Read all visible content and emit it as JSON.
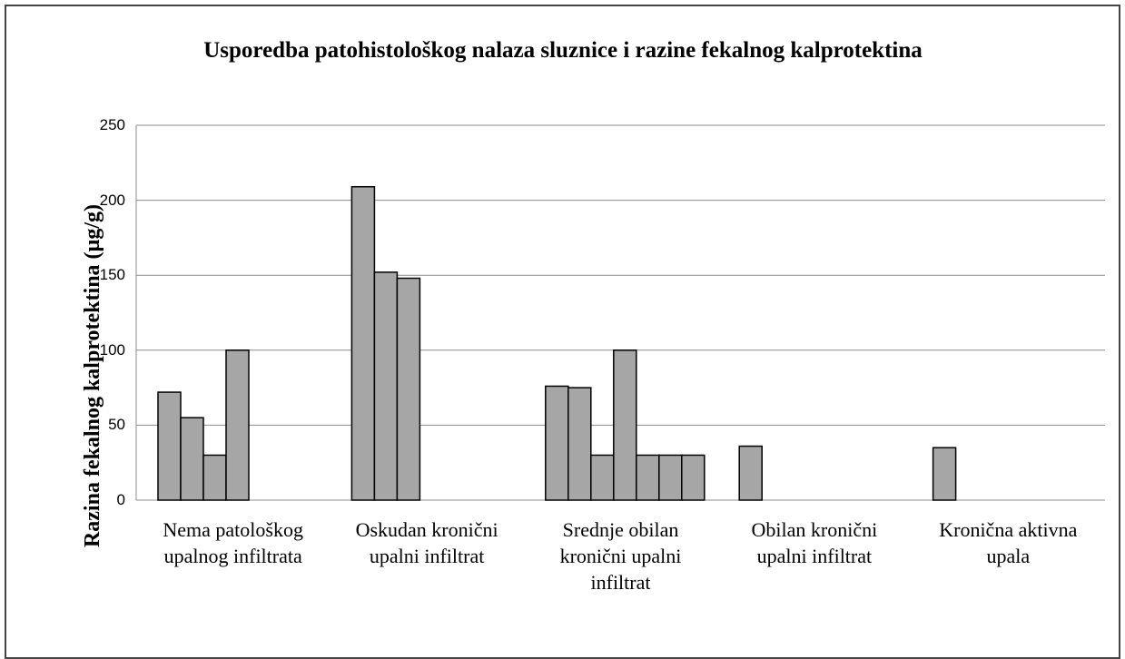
{
  "chart_data": {
    "type": "bar",
    "title": "Usporedba patohistološkog nalaza sluznice i razine fekalnog kalprotektina",
    "y_label": "Razina fekalnog kalprotektina (µg/g)",
    "categories": [
      "Nema patološkog upalnog infiltrata",
      "Oskudan kronični upalni infiltrat",
      "Srednje obilan kronični upalni infiltrat",
      "Obilan kronični upalni infiltrat",
      "Kronična aktivna upala"
    ],
    "series": [
      {
        "color": "#a6a6a6",
        "values": [
          72,
          209,
          76,
          36,
          35
        ]
      },
      {
        "color": "#a6a6a6",
        "values": [
          55,
          152,
          75,
          null,
          null
        ]
      },
      {
        "color": "#a6a6a6",
        "values": [
          30,
          148,
          30,
          null,
          null
        ]
      },
      {
        "color": "#a6a6a6",
        "values": [
          100,
          null,
          100,
          null,
          null
        ]
      },
      {
        "color": "#a6a6a6",
        "values": [
          null,
          null,
          30,
          null,
          null
        ]
      },
      {
        "color": "#a6a6a6",
        "values": [
          null,
          null,
          30,
          null,
          null
        ]
      },
      {
        "color": "#a6a6a6",
        "values": [
          null,
          null,
          30,
          null,
          null
        ]
      }
    ],
    "ylim": [
      0,
      250
    ],
    "yticks": [
      0,
      50,
      100,
      150,
      200,
      250
    ],
    "grid": true
  }
}
